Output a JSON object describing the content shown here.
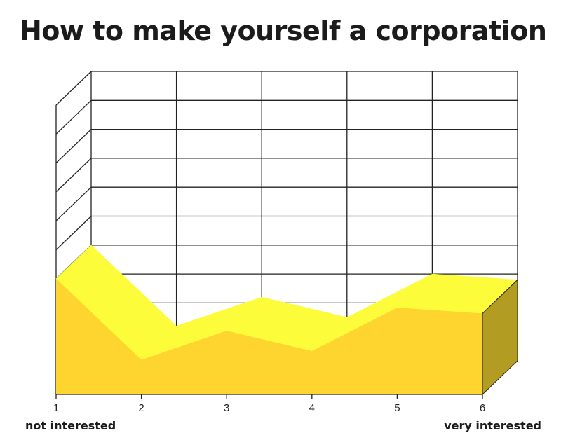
{
  "chart_data": {
    "type": "area",
    "title": "How to make yourself a corporation",
    "x": [
      1,
      2,
      3,
      4,
      5,
      6
    ],
    "tick_labels": [
      "1",
      "2",
      "3",
      "4",
      "5",
      "6"
    ],
    "values": [
      4.0,
      1.2,
      2.2,
      1.5,
      3.0,
      2.8
    ],
    "ylim": [
      0,
      10
    ],
    "y_gridlines": 10,
    "grid": true,
    "three_d": true,
    "low_label": "not interested",
    "high_label": "very interested",
    "colors": {
      "front": "#fed42e",
      "top": "#fdfc3a",
      "side": "#b39c22",
      "grid": "#222222"
    }
  }
}
